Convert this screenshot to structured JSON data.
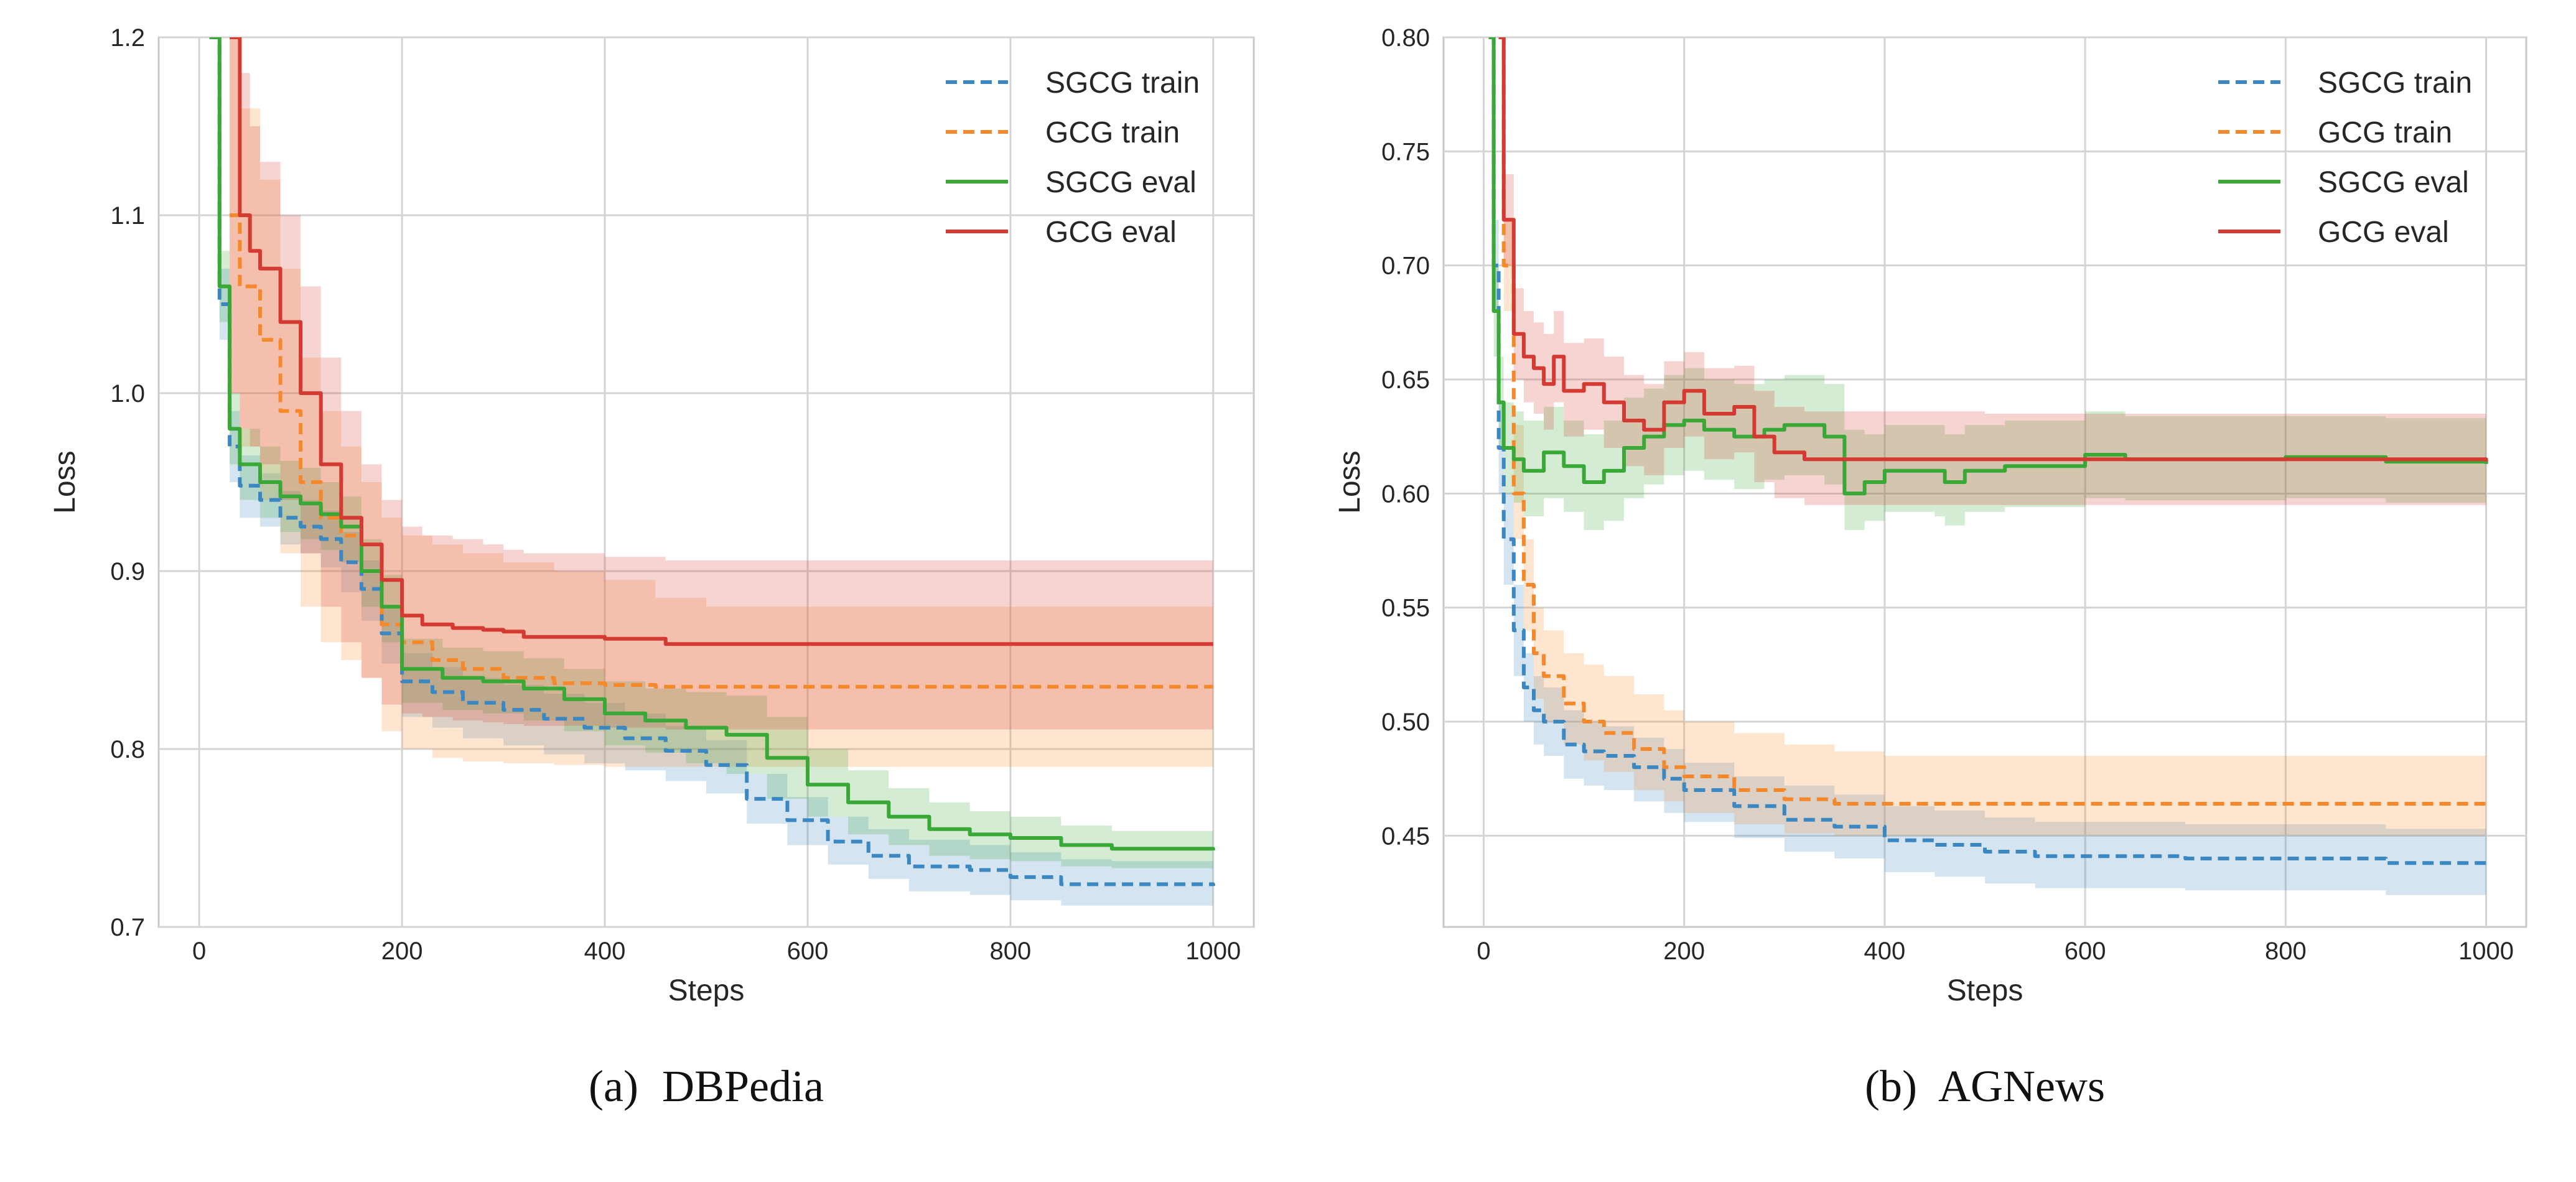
{
  "colors": {
    "sgcg_train": "#3a87c1",
    "gcg_train": "#f5882b",
    "sgcg_eval": "#3aa836",
    "gcg_eval": "#d43a32",
    "grid": "#d4d4d4",
    "frame": "#c8c8c8"
  },
  "chart_data": [
    {
      "type": "line",
      "caption": {
        "tag": "(a)",
        "text": "DBPedia"
      },
      "xlabel": "Steps",
      "ylabel": "Loss",
      "xlim": [
        -40,
        1040
      ],
      "ylim": [
        0.7,
        1.2
      ],
      "xticks": [
        0,
        200,
        400,
        600,
        800,
        1000
      ],
      "yticks": [
        0.7,
        0.8,
        0.9,
        1.0,
        1.1,
        1.2
      ],
      "xtick_labels": [
        "0",
        "200",
        "400",
        "600",
        "800",
        "1000"
      ],
      "ytick_labels": [
        "0.7",
        "0.8",
        "0.9",
        "1.0",
        "1.1",
        "1.2"
      ],
      "grid": true,
      "legend_position": "top-right",
      "series": [
        {
          "name": "SGCG train",
          "color_key": "sgcg_train",
          "dash": true,
          "x": [
            10,
            20,
            30,
            40,
            60,
            80,
            100,
            120,
            140,
            160,
            180,
            200,
            230,
            260,
            300,
            340,
            380,
            420,
            460,
            500,
            540,
            580,
            620,
            660,
            700,
            760,
            800,
            850,
            900,
            1000
          ],
          "y": [
            1.2,
            1.05,
            0.97,
            0.948,
            0.94,
            0.93,
            0.925,
            0.918,
            0.905,
            0.89,
            0.865,
            0.838,
            0.832,
            0.826,
            0.822,
            0.817,
            0.812,
            0.806,
            0.799,
            0.791,
            0.772,
            0.76,
            0.748,
            0.74,
            0.734,
            0.732,
            0.728,
            0.724,
            0.724,
            0.723
          ],
          "band_upper": [
            1.2,
            1.07,
            0.99,
            0.965,
            0.955,
            0.945,
            0.94,
            0.934,
            0.922,
            0.906,
            0.88,
            0.854,
            0.846,
            0.84,
            0.836,
            0.831,
            0.826,
            0.82,
            0.813,
            0.805,
            0.786,
            0.773,
            0.762,
            0.755,
            0.749,
            0.746,
            0.742,
            0.738,
            0.737,
            0.735
          ],
          "band_lower": [
            1.2,
            1.03,
            0.95,
            0.93,
            0.925,
            0.915,
            0.91,
            0.902,
            0.888,
            0.872,
            0.848,
            0.818,
            0.812,
            0.806,
            0.802,
            0.797,
            0.792,
            0.788,
            0.782,
            0.775,
            0.758,
            0.746,
            0.735,
            0.727,
            0.72,
            0.718,
            0.715,
            0.712,
            0.712,
            0.711
          ]
        },
        {
          "name": "GCG train",
          "color_key": "gcg_train",
          "dash": true,
          "x": [
            30,
            40,
            60,
            80,
            100,
            120,
            140,
            160,
            180,
            200,
            230,
            260,
            300,
            350,
            400,
            450,
            500,
            1000
          ],
          "y": [
            1.1,
            1.06,
            1.03,
            0.99,
            0.95,
            0.93,
            0.92,
            0.9,
            0.87,
            0.86,
            0.85,
            0.845,
            0.84,
            0.837,
            0.836,
            0.835,
            0.835,
            0.835
          ],
          "band_upper": [
            1.2,
            1.16,
            1.12,
            1.07,
            1.02,
            0.99,
            0.97,
            0.95,
            0.93,
            0.92,
            0.915,
            0.91,
            0.905,
            0.9,
            0.895,
            0.885,
            0.88,
            0.88
          ],
          "band_lower": [
            1.0,
            0.97,
            0.94,
            0.91,
            0.88,
            0.86,
            0.85,
            0.84,
            0.81,
            0.8,
            0.795,
            0.793,
            0.792,
            0.791,
            0.79,
            0.79,
            0.79,
            0.79
          ]
        },
        {
          "name": "SGCG eval",
          "color_key": "sgcg_eval",
          "dash": false,
          "x": [
            10,
            20,
            30,
            40,
            60,
            80,
            100,
            120,
            140,
            160,
            180,
            200,
            240,
            280,
            320,
            360,
            400,
            440,
            480,
            520,
            560,
            600,
            640,
            680,
            720,
            760,
            800,
            850,
            900,
            1000
          ],
          "y": [
            1.2,
            1.06,
            0.98,
            0.96,
            0.95,
            0.942,
            0.938,
            0.932,
            0.925,
            0.9,
            0.88,
            0.845,
            0.84,
            0.838,
            0.834,
            0.828,
            0.82,
            0.816,
            0.812,
            0.808,
            0.795,
            0.78,
            0.77,
            0.762,
            0.755,
            0.752,
            0.75,
            0.746,
            0.744,
            0.743
          ],
          "band_upper": [
            1.2,
            1.08,
            1.0,
            0.98,
            0.97,
            0.962,
            0.958,
            0.95,
            0.942,
            0.918,
            0.898,
            0.862,
            0.857,
            0.855,
            0.851,
            0.845,
            0.838,
            0.834,
            0.832,
            0.83,
            0.818,
            0.8,
            0.788,
            0.778,
            0.77,
            0.765,
            0.762,
            0.757,
            0.754,
            0.752
          ],
          "band_lower": [
            1.2,
            1.04,
            0.96,
            0.94,
            0.93,
            0.922,
            0.918,
            0.912,
            0.905,
            0.88,
            0.86,
            0.826,
            0.822,
            0.82,
            0.816,
            0.81,
            0.802,
            0.798,
            0.792,
            0.786,
            0.772,
            0.762,
            0.752,
            0.746,
            0.74,
            0.738,
            0.737,
            0.734,
            0.733,
            0.733
          ]
        },
        {
          "name": "GCG eval",
          "color_key": "gcg_eval",
          "dash": false,
          "x": [
            30,
            40,
            50,
            60,
            80,
            100,
            120,
            140,
            160,
            180,
            200,
            220,
            250,
            280,
            300,
            320,
            400,
            460,
            1000
          ],
          "y": [
            1.2,
            1.1,
            1.08,
            1.07,
            1.04,
            1.0,
            0.96,
            0.93,
            0.915,
            0.895,
            0.875,
            0.87,
            0.868,
            0.867,
            0.866,
            0.863,
            0.862,
            0.859,
            0.859
          ],
          "band_upper": [
            1.2,
            1.18,
            1.15,
            1.13,
            1.1,
            1.06,
            1.02,
            0.99,
            0.96,
            0.94,
            0.925,
            0.92,
            0.918,
            0.915,
            0.912,
            0.91,
            0.908,
            0.906,
            0.906
          ],
          "band_lower": [
            1.0,
            0.98,
            0.97,
            0.96,
            0.94,
            0.91,
            0.88,
            0.86,
            0.84,
            0.825,
            0.82,
            0.818,
            0.816,
            0.815,
            0.814,
            0.813,
            0.812,
            0.811,
            0.811
          ]
        }
      ]
    },
    {
      "type": "line",
      "caption": {
        "tag": "(b)",
        "text": "AGNews"
      },
      "xlabel": "Steps",
      "ylabel": "Loss",
      "xlim": [
        -40,
        1040
      ],
      "ylim": [
        0.41,
        0.8
      ],
      "xticks": [
        0,
        200,
        400,
        600,
        800,
        1000
      ],
      "yticks": [
        0.45,
        0.5,
        0.55,
        0.6,
        0.65,
        0.7,
        0.75,
        0.8
      ],
      "xtick_labels": [
        "0",
        "200",
        "400",
        "600",
        "800",
        "1000"
      ],
      "ytick_labels": [
        "0.45",
        "0.50",
        "0.55",
        "0.60",
        "0.65",
        "0.70",
        "0.75",
        "0.80"
      ],
      "grid": true,
      "legend_position": "top-right",
      "series": [
        {
          "name": "SGCG train",
          "color_key": "sgcg_train",
          "dash": true,
          "x": [
            5,
            10,
            15,
            20,
            30,
            40,
            50,
            60,
            80,
            100,
            120,
            150,
            180,
            200,
            250,
            300,
            350,
            400,
            450,
            500,
            550,
            600,
            700,
            800,
            900,
            1000
          ],
          "y": [
            0.8,
            0.7,
            0.62,
            0.58,
            0.54,
            0.515,
            0.505,
            0.5,
            0.49,
            0.487,
            0.485,
            0.48,
            0.475,
            0.47,
            0.463,
            0.457,
            0.454,
            0.448,
            0.446,
            0.443,
            0.441,
            0.441,
            0.44,
            0.44,
            0.438,
            0.437
          ],
          "band_upper": [
            0.8,
            0.72,
            0.64,
            0.6,
            0.56,
            0.53,
            0.52,
            0.515,
            0.505,
            0.5,
            0.498,
            0.493,
            0.488,
            0.482,
            0.476,
            0.472,
            0.468,
            0.463,
            0.461,
            0.458,
            0.456,
            0.456,
            0.455,
            0.455,
            0.453,
            0.452
          ],
          "band_lower": [
            0.8,
            0.68,
            0.6,
            0.56,
            0.52,
            0.5,
            0.49,
            0.485,
            0.475,
            0.472,
            0.47,
            0.465,
            0.46,
            0.456,
            0.449,
            0.443,
            0.44,
            0.434,
            0.432,
            0.429,
            0.427,
            0.427,
            0.426,
            0.426,
            0.424,
            0.423
          ]
        },
        {
          "name": "GCG train",
          "color_key": "gcg_train",
          "dash": true,
          "x": [
            15,
            20,
            30,
            40,
            50,
            60,
            80,
            100,
            120,
            150,
            180,
            200,
            250,
            300,
            350,
            400,
            1000
          ],
          "y": [
            0.8,
            0.7,
            0.6,
            0.56,
            0.53,
            0.52,
            0.508,
            0.5,
            0.495,
            0.488,
            0.48,
            0.476,
            0.47,
            0.466,
            0.464,
            0.464,
            0.464
          ],
          "band_upper": [
            0.8,
            0.72,
            0.63,
            0.58,
            0.55,
            0.54,
            0.53,
            0.525,
            0.52,
            0.512,
            0.505,
            0.5,
            0.495,
            0.49,
            0.487,
            0.485,
            0.483
          ],
          "band_lower": [
            0.8,
            0.68,
            0.58,
            0.54,
            0.51,
            0.5,
            0.49,
            0.483,
            0.478,
            0.47,
            0.465,
            0.46,
            0.455,
            0.451,
            0.45,
            0.45,
            0.45
          ]
        },
        {
          "name": "SGCG eval",
          "color_key": "sgcg_eval",
          "dash": false,
          "x": [
            5,
            10,
            15,
            20,
            30,
            40,
            60,
            80,
            100,
            120,
            140,
            160,
            180,
            200,
            220,
            250,
            280,
            300,
            320,
            340,
            360,
            380,
            400,
            450,
            460,
            480,
            520,
            600,
            640,
            700,
            800,
            900,
            1000
          ],
          "y": [
            0.8,
            0.68,
            0.64,
            0.62,
            0.615,
            0.61,
            0.618,
            0.612,
            0.605,
            0.61,
            0.62,
            0.625,
            0.63,
            0.632,
            0.628,
            0.625,
            0.628,
            0.63,
            0.63,
            0.625,
            0.6,
            0.605,
            0.61,
            0.61,
            0.605,
            0.61,
            0.612,
            0.617,
            0.615,
            0.615,
            0.616,
            0.614,
            0.613
          ],
          "band_upper": [
            0.8,
            0.7,
            0.66,
            0.64,
            0.636,
            0.632,
            0.638,
            0.632,
            0.626,
            0.632,
            0.642,
            0.646,
            0.652,
            0.655,
            0.65,
            0.648,
            0.65,
            0.652,
            0.652,
            0.648,
            0.628,
            0.626,
            0.63,
            0.63,
            0.626,
            0.63,
            0.632,
            0.636,
            0.634,
            0.634,
            0.634,
            0.633,
            0.632
          ],
          "band_lower": [
            0.8,
            0.66,
            0.62,
            0.6,
            0.596,
            0.59,
            0.598,
            0.592,
            0.584,
            0.588,
            0.598,
            0.604,
            0.608,
            0.61,
            0.606,
            0.602,
            0.606,
            0.608,
            0.608,
            0.604,
            0.584,
            0.588,
            0.592,
            0.59,
            0.586,
            0.592,
            0.594,
            0.598,
            0.597,
            0.597,
            0.598,
            0.596,
            0.595
          ]
        },
        {
          "name": "GCG eval",
          "color_key": "gcg_eval",
          "dash": false,
          "x": [
            15,
            20,
            30,
            40,
            50,
            60,
            70,
            80,
            100,
            120,
            140,
            160,
            180,
            200,
            220,
            250,
            270,
            290,
            320,
            400,
            500,
            1000
          ],
          "y": [
            0.8,
            0.72,
            0.67,
            0.66,
            0.655,
            0.648,
            0.66,
            0.645,
            0.648,
            0.64,
            0.632,
            0.628,
            0.64,
            0.645,
            0.635,
            0.638,
            0.625,
            0.618,
            0.615,
            0.615,
            0.615,
            0.614
          ],
          "band_upper": [
            0.8,
            0.74,
            0.69,
            0.68,
            0.675,
            0.67,
            0.68,
            0.666,
            0.668,
            0.66,
            0.652,
            0.648,
            0.658,
            0.662,
            0.655,
            0.656,
            0.645,
            0.638,
            0.636,
            0.636,
            0.635,
            0.635
          ],
          "band_lower": [
            0.8,
            0.7,
            0.65,
            0.64,
            0.635,
            0.628,
            0.64,
            0.625,
            0.628,
            0.62,
            0.612,
            0.608,
            0.62,
            0.625,
            0.615,
            0.618,
            0.605,
            0.598,
            0.595,
            0.595,
            0.595,
            0.594
          ]
        }
      ]
    }
  ]
}
